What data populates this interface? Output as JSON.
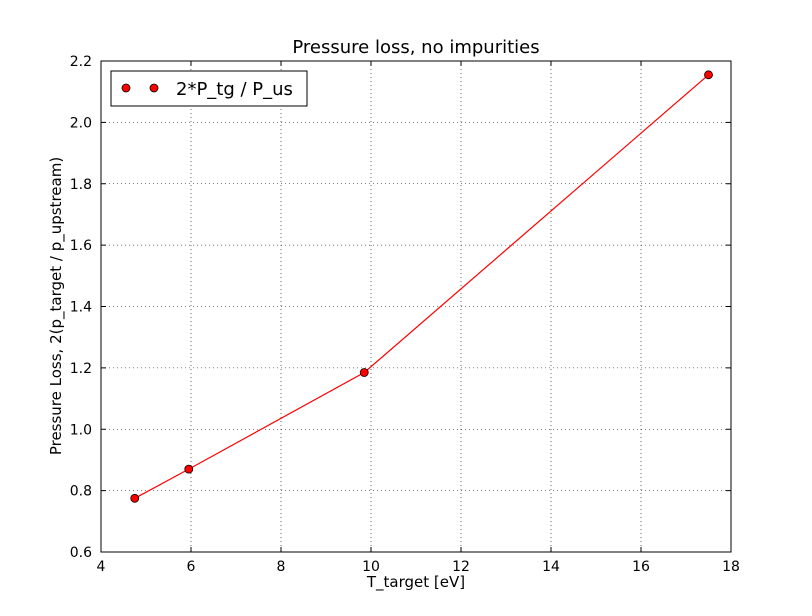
{
  "chart_data": {
    "type": "line",
    "title": "Pressure loss, no impurities",
    "xlabel": "T_target [eV]",
    "ylabel": "Pressure Loss, 2(p_target / p_upstream)",
    "xlim": [
      4,
      18
    ],
    "ylim": [
      0.6,
      2.2
    ],
    "xticks": [
      4,
      6,
      8,
      10,
      12,
      14,
      16,
      18
    ],
    "yticks": [
      0.6,
      0.8,
      1.0,
      1.2,
      1.4,
      1.6,
      1.8,
      2.0,
      2.2
    ],
    "xtick_labels": [
      "4",
      "6",
      "8",
      "10",
      "12",
      "14",
      "16",
      "18"
    ],
    "ytick_labels": [
      "0.6",
      "0.8",
      "1.0",
      "1.2",
      "1.4",
      "1.6",
      "1.8",
      "2.0",
      "2.2"
    ],
    "grid": true,
    "grid_style": "dotted",
    "legend_position": "top-left",
    "series": [
      {
        "name": "2*P_tg / P_us",
        "color": "#ff0000",
        "marker": "circle",
        "x": [
          4.75,
          5.95,
          9.85,
          17.5
        ],
        "y": [
          0.775,
          0.87,
          1.185,
          2.155
        ]
      }
    ]
  }
}
